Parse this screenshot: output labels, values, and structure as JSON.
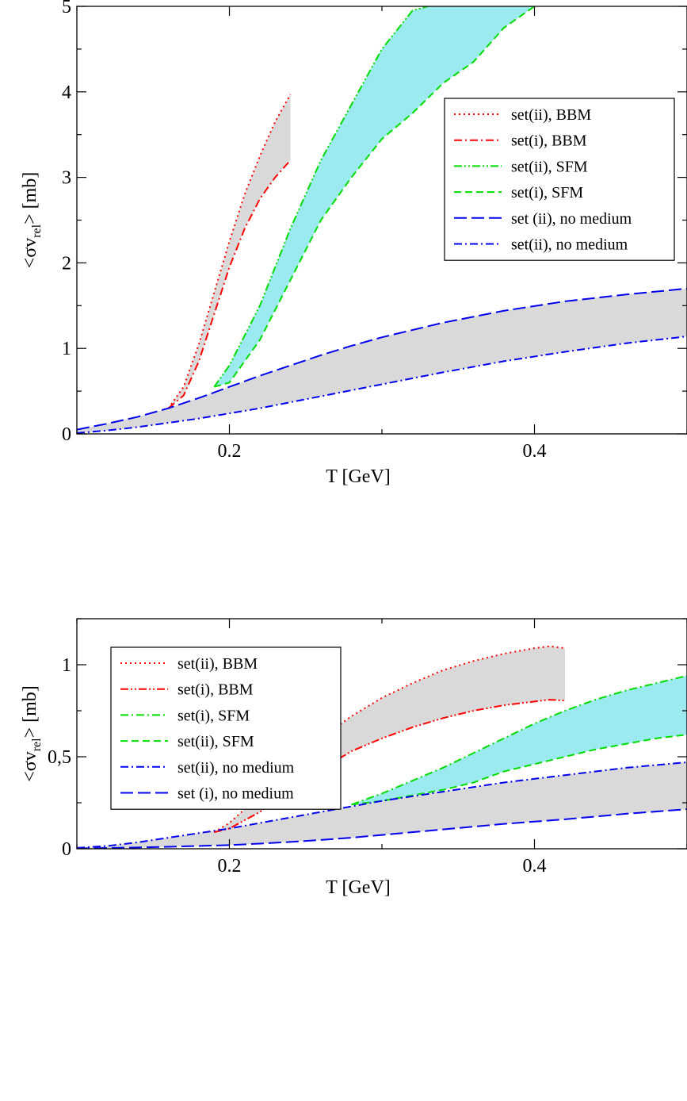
{
  "chart_data": [
    {
      "type": "line",
      "xlabel": "T [GeV]",
      "ylabel_main": "<σv",
      "ylabel_sub": "rel",
      "ylabel_end": "> [mb]",
      "xlim": [
        0.1,
        0.5
      ],
      "ylim": [
        0,
        5
      ],
      "xticks": [
        0.2,
        0.4
      ],
      "xtick_labels": [
        "0.2",
        "0.4"
      ],
      "yticks": [
        0,
        1,
        2,
        3,
        4,
        5
      ],
      "ytick_labels": [
        "0",
        "1",
        "2",
        "3",
        "4",
        "5"
      ],
      "legend_position": "upper-right",
      "bands": [
        {
          "upper": "set(ii), BBM",
          "lower": "set(i), BBM",
          "fill": "#d2d2d2"
        },
        {
          "upper": "set(ii), SFM",
          "lower": "set(i), SFM",
          "fill": "#8ae6ec"
        },
        {
          "upper": "set (ii), no medium",
          "lower": "set(ii), no medium",
          "fill": "#d2d2d2"
        }
      ],
      "series": [
        {
          "name": "set(ii), BBM",
          "color": "#ff0000",
          "dash": "dotted",
          "x": [
            0.16,
            0.17,
            0.18,
            0.19,
            0.2,
            0.21,
            0.22,
            0.23,
            0.24
          ],
          "y": [
            0.3,
            0.55,
            1.05,
            1.65,
            2.25,
            2.8,
            3.25,
            3.65,
            3.97
          ]
        },
        {
          "name": "set(i), BBM",
          "color": "#ff0000",
          "dash": "dashdot",
          "x": [
            0.16,
            0.17,
            0.18,
            0.19,
            0.2,
            0.21,
            0.22,
            0.23,
            0.24
          ],
          "y": [
            0.3,
            0.45,
            0.85,
            1.4,
            1.95,
            2.4,
            2.75,
            3.0,
            3.2
          ]
        },
        {
          "name": "set(ii), SFM",
          "color": "#00dd00",
          "dash": "dashdotdot",
          "x": [
            0.19,
            0.2,
            0.22,
            0.24,
            0.26,
            0.28,
            0.3,
            0.32,
            0.33
          ],
          "y": [
            0.55,
            0.8,
            1.5,
            2.4,
            3.2,
            3.85,
            4.5,
            4.95,
            5.0
          ]
        },
        {
          "name": "set(i), SFM",
          "color": "#00dd00",
          "dash": "dashed",
          "x": [
            0.19,
            0.2,
            0.22,
            0.24,
            0.26,
            0.28,
            0.3,
            0.32,
            0.34,
            0.36,
            0.38,
            0.4
          ],
          "y": [
            0.55,
            0.6,
            1.1,
            1.8,
            2.5,
            3.0,
            3.45,
            3.75,
            4.1,
            4.35,
            4.75,
            5.0
          ]
        },
        {
          "name": "set (ii), no medium",
          "color": "#0000ee",
          "dash": "longdash",
          "x": [
            0.1,
            0.12,
            0.14,
            0.16,
            0.18,
            0.2,
            0.22,
            0.24,
            0.26,
            0.28,
            0.3,
            0.34,
            0.38,
            0.42,
            0.46,
            0.5
          ],
          "y": [
            0.05,
            0.12,
            0.2,
            0.3,
            0.42,
            0.55,
            0.68,
            0.8,
            0.92,
            1.03,
            1.13,
            1.3,
            1.44,
            1.55,
            1.63,
            1.7
          ]
        },
        {
          "name": "set(ii), no medium",
          "color": "#0000ee",
          "dash": "dashdot",
          "x": [
            0.1,
            0.12,
            0.14,
            0.16,
            0.18,
            0.2,
            0.22,
            0.24,
            0.26,
            0.28,
            0.3,
            0.34,
            0.38,
            0.42,
            0.46,
            0.5
          ],
          "y": [
            0.01,
            0.04,
            0.08,
            0.13,
            0.18,
            0.24,
            0.3,
            0.37,
            0.44,
            0.51,
            0.58,
            0.72,
            0.85,
            0.96,
            1.06,
            1.14
          ]
        }
      ]
    },
    {
      "type": "line",
      "xlabel": "T [GeV]",
      "ylabel_main": "<σv",
      "ylabel_sub": "rel",
      "ylabel_end": "> [mb]",
      "xlim": [
        0.1,
        0.5
      ],
      "ylim": [
        0,
        1.25
      ],
      "xticks": [
        0.2,
        0.4
      ],
      "xtick_labels": [
        "0.2",
        "0.4"
      ],
      "yticks": [
        0,
        0.5,
        1
      ],
      "ytick_labels": [
        "0",
        "0,5",
        "1"
      ],
      "legend_position": "upper-left",
      "bands": [
        {
          "upper": "set(ii), BBM",
          "lower": "set(i), BBM",
          "fill": "#d2d2d2"
        },
        {
          "upper": "set(i), SFM",
          "lower": "set(ii), SFM",
          "fill": "#8ae6ec"
        },
        {
          "upper": "set(ii), no medium",
          "lower": "set (i), no medium",
          "fill": "#d2d2d2"
        }
      ],
      "series": [
        {
          "name": "set(ii), BBM",
          "color": "#ff0000",
          "dash": "dotted",
          "x": [
            0.19,
            0.2,
            0.22,
            0.24,
            0.26,
            0.28,
            0.3,
            0.32,
            0.34,
            0.36,
            0.38,
            0.4,
            0.41,
            0.42
          ],
          "y": [
            0.09,
            0.14,
            0.29,
            0.45,
            0.6,
            0.72,
            0.82,
            0.9,
            0.97,
            1.02,
            1.06,
            1.09,
            1.1,
            1.09
          ]
        },
        {
          "name": "set(i), BBM",
          "color": "#ff0000",
          "dash": "dashdotdot",
          "x": [
            0.19,
            0.2,
            0.22,
            0.24,
            0.26,
            0.28,
            0.3,
            0.32,
            0.34,
            0.36,
            0.38,
            0.4,
            0.41,
            0.42
          ],
          "y": [
            0.09,
            0.11,
            0.2,
            0.32,
            0.43,
            0.53,
            0.6,
            0.66,
            0.71,
            0.75,
            0.78,
            0.8,
            0.81,
            0.805
          ]
        },
        {
          "name": "set(i), SFM",
          "color": "#00dd00",
          "dash": "dashdot",
          "x": [
            0.28,
            0.3,
            0.32,
            0.34,
            0.36,
            0.38,
            0.4,
            0.42,
            0.44,
            0.46,
            0.48,
            0.5
          ],
          "y": [
            0.24,
            0.3,
            0.37,
            0.44,
            0.52,
            0.6,
            0.68,
            0.75,
            0.81,
            0.86,
            0.9,
            0.94
          ]
        },
        {
          "name": "set(ii), SFM",
          "color": "#00dd00",
          "dash": "dashed",
          "x": [
            0.28,
            0.3,
            0.32,
            0.34,
            0.36,
            0.38,
            0.4,
            0.42,
            0.44,
            0.46,
            0.48,
            0.5
          ],
          "y": [
            0.24,
            0.26,
            0.29,
            0.32,
            0.36,
            0.42,
            0.46,
            0.5,
            0.54,
            0.57,
            0.6,
            0.62
          ]
        },
        {
          "name": "set(ii), no medium",
          "color": "#0000ee",
          "dash": "dashdot",
          "x": [
            0.1,
            0.12,
            0.14,
            0.16,
            0.18,
            0.2,
            0.22,
            0.24,
            0.26,
            0.28,
            0.3,
            0.34,
            0.38,
            0.42,
            0.46,
            0.5
          ],
          "y": [
            0.005,
            0.015,
            0.035,
            0.06,
            0.085,
            0.11,
            0.14,
            0.17,
            0.2,
            0.23,
            0.26,
            0.31,
            0.36,
            0.4,
            0.44,
            0.47
          ]
        },
        {
          "name": "set (i), no medium",
          "color": "#0000ee",
          "dash": "longdash",
          "x": [
            0.1,
            0.12,
            0.14,
            0.16,
            0.18,
            0.2,
            0.22,
            0.24,
            0.26,
            0.28,
            0.3,
            0.34,
            0.38,
            0.42,
            0.46,
            0.5
          ],
          "y": [
            0.002,
            0.004,
            0.007,
            0.011,
            0.015,
            0.02,
            0.028,
            0.037,
            0.048,
            0.06,
            0.075,
            0.105,
            0.135,
            0.16,
            0.19,
            0.215
          ]
        }
      ]
    }
  ]
}
